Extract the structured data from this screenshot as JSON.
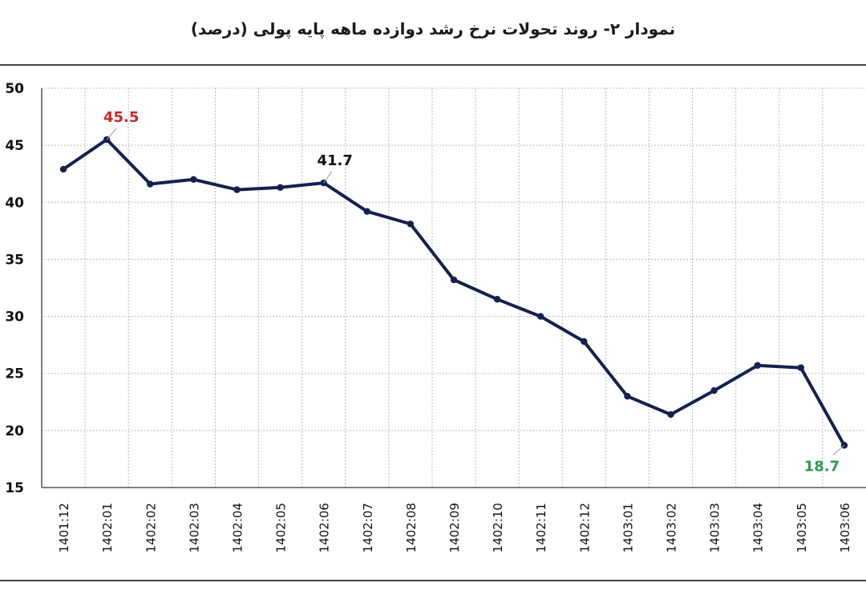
{
  "title": "نمودار ۲- روند تحولات نرخ رشد دوازده ماهه پایه پولی (درصد)",
  "colors": {
    "line": "#14214e",
    "grid": "#bbbbbb",
    "max_label": "#c62828",
    "min_label": "#2e9a52",
    "plain_label": "#111111"
  },
  "chart_data": {
    "type": "line",
    "title": "نمودار ۲- روند تحولات نرخ رشد دوازده ماهه پایه پولی (درصد)",
    "xlabel": "",
    "ylabel": "",
    "ylim": [
      15,
      50
    ],
    "yticks": [
      15,
      20,
      25,
      30,
      35,
      40,
      45,
      50
    ],
    "grid": true,
    "legend": "none",
    "categories": [
      "1401:12",
      "1402:01",
      "1402:02",
      "1402:03",
      "1402:04",
      "1402:05",
      "1402:06",
      "1402:07",
      "1402:08",
      "1402:09",
      "1402:10",
      "1402:11",
      "1402:12",
      "1403:01",
      "1403:02",
      "1403:03",
      "1403:04",
      "1403:05",
      "1403:06"
    ],
    "series": [
      {
        "values": [
          42.9,
          45.5,
          41.6,
          42.0,
          41.1,
          41.3,
          41.7,
          39.2,
          38.1,
          33.2,
          31.5,
          30.0,
          27.8,
          23.0,
          21.4,
          23.5,
          25.7,
          25.5,
          18.7
        ]
      }
    ],
    "annotations": [
      {
        "index": 1,
        "text": "45.5",
        "role": "max"
      },
      {
        "index": 6,
        "text": "41.7",
        "role": "plain"
      },
      {
        "index": 18,
        "text": "18.7",
        "role": "min"
      }
    ]
  }
}
